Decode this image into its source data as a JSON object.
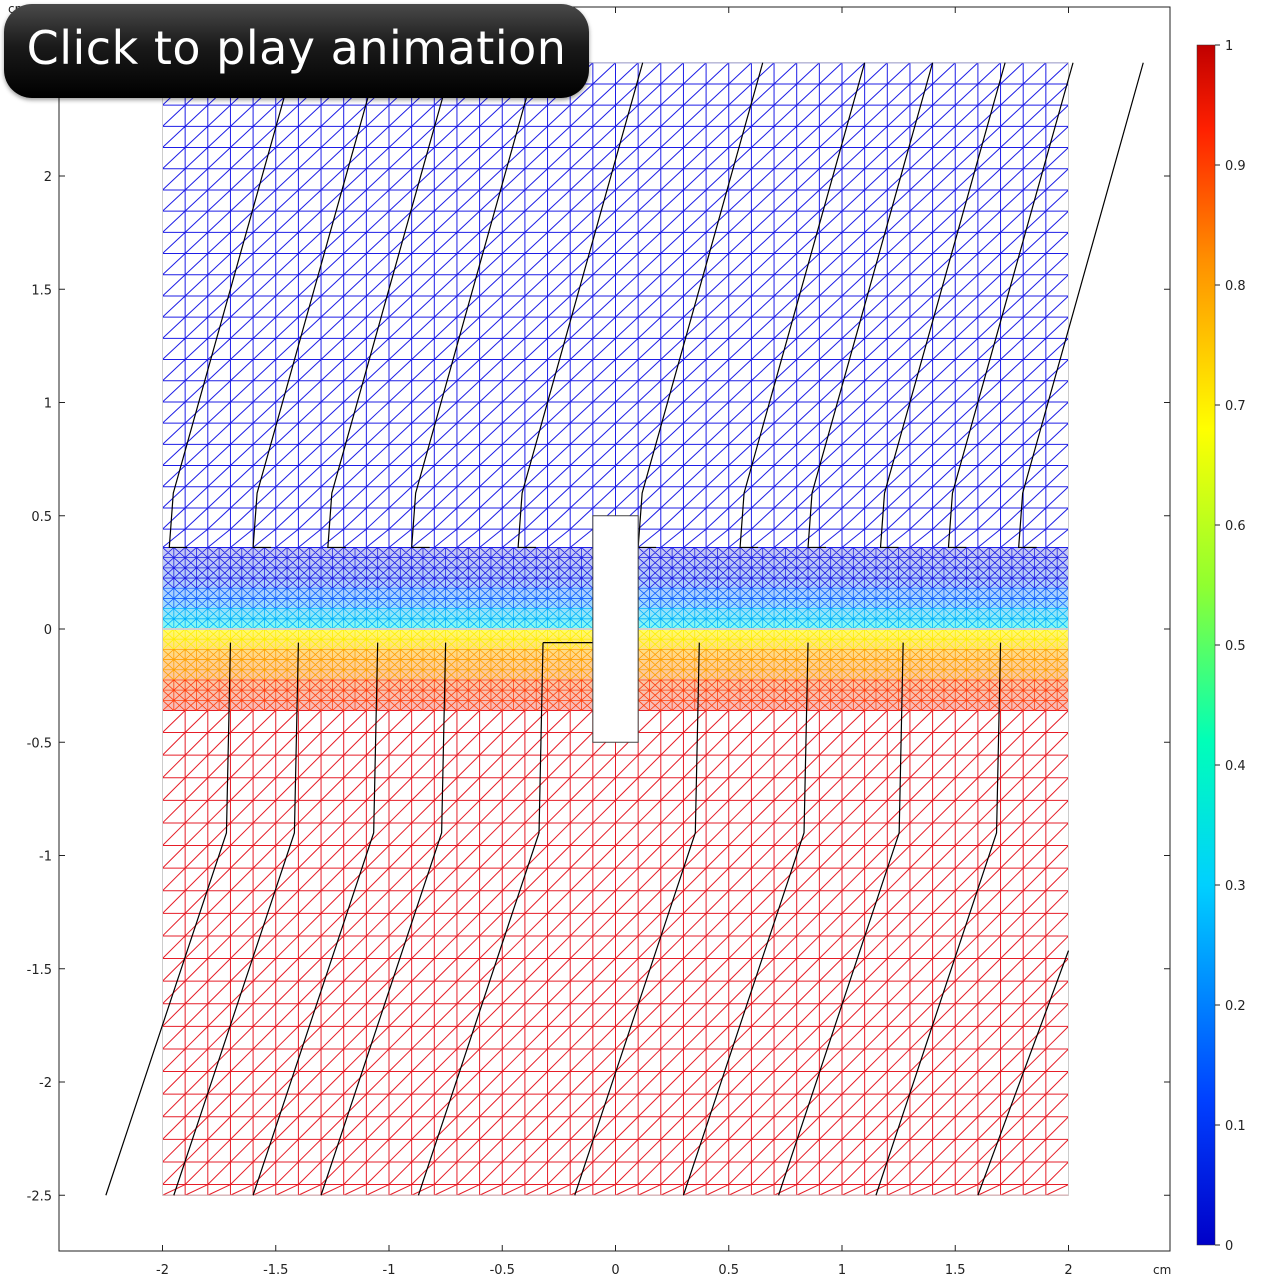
{
  "animation": {
    "play_label": "Click to play animation"
  },
  "plot": {
    "x_unit": "cm",
    "y_unit": "cm",
    "x_ticks": [
      "-2",
      "-1.5",
      "-1",
      "-0.5",
      "0",
      "0.5",
      "1",
      "1.5",
      "2"
    ],
    "y_ticks": [
      "2",
      "1.5",
      "1",
      "0.5",
      "0",
      "-0.5",
      "-1",
      "-1.5",
      "-2",
      "-2.5"
    ]
  },
  "colorbar": {
    "ticks": [
      "1",
      "0.9",
      "0.8",
      "0.7",
      "0.6",
      "0.5",
      "0.4",
      "0.3",
      "0.2",
      "0.1",
      "0"
    ],
    "min": 0,
    "max": 1,
    "colormap": "rainbow",
    "colors": [
      "#0000c8",
      "#0050ff",
      "#00c8ff",
      "#00ffb0",
      "#80ff40",
      "#ffff00",
      "#ffa000",
      "#ff3000",
      "#c00000"
    ]
  },
  "colors": {
    "upper_mesh": "#1e1ee6",
    "lower_mesh": "#e61e28",
    "streamline": "#000000"
  }
}
